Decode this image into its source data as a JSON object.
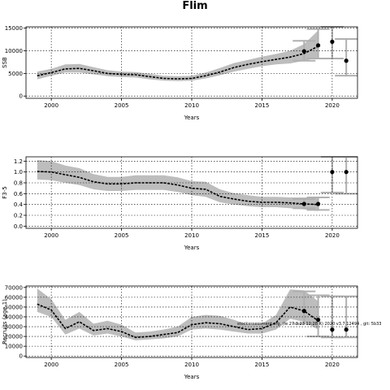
{
  "page": {
    "title": "Flim"
  },
  "annotation": "stockassessment.org, (le 27.3.23 12:28 R) 2020 v3.7.12494 , git: 5b33",
  "chart_data": [
    {
      "type": "line",
      "panel": "ssb",
      "title": "",
      "xlabel": "Years",
      "ylabel": "SSB",
      "xlim": [
        1998.2,
        2021.8
      ],
      "ylim": [
        -500,
        15300
      ],
      "xticks": [
        2000,
        2005,
        2010,
        2015,
        2020
      ],
      "yticks": [
        0,
        5000,
        10000,
        15000
      ],
      "ytick_labels": [
        "0",
        "5000",
        "10000",
        "15000"
      ],
      "grid": true,
      "x": [
        1999,
        2000,
        2001,
        2002,
        2003,
        2004,
        2005,
        2006,
        2007,
        2008,
        2009,
        2010,
        2011,
        2012,
        2013,
        2014,
        2015,
        2016,
        2017,
        2018,
        2019
      ],
      "y": [
        4500,
        5200,
        6000,
        6100,
        5600,
        5000,
        4800,
        4700,
        4300,
        3900,
        3800,
        3900,
        4500,
        5300,
        6300,
        7000,
        7600,
        8100,
        8600,
        9400,
        11000
      ],
      "lower": [
        3700,
        4500,
        5200,
        5200,
        4800,
        4400,
        4200,
        4100,
        3700,
        3400,
        3300,
        3400,
        3900,
        4600,
        5400,
        6000,
        6600,
        7000,
        7200,
        7800,
        8500
      ],
      "upper": [
        5400,
        6000,
        7000,
        7100,
        6400,
        5700,
        5400,
        5300,
        4900,
        4500,
        4400,
        4500,
        5200,
        6200,
        7300,
        8000,
        8700,
        9300,
        10000,
        11500,
        14500
      ],
      "points": [
        {
          "x": 2018,
          "y": 9900,
          "lower": 7800,
          "upper": 12200
        },
        {
          "x": 2019,
          "y": 11200,
          "lower": 8300,
          "upper": 14800
        },
        {
          "x": 2020,
          "y": 12000,
          "lower": 8300,
          "upper": 15300
        },
        {
          "x": 2021,
          "y": 7800,
          "lower": 4500,
          "upper": 12600
        }
      ]
    },
    {
      "type": "line",
      "panel": "f",
      "title": "",
      "xlabel": "Years",
      "ylabel": "F3-5",
      "xlim": [
        1998.2,
        2021.8
      ],
      "ylim": [
        -0.04,
        1.28
      ],
      "xticks": [
        2000,
        2005,
        2010,
        2015,
        2020
      ],
      "yticks": [
        0,
        0.2,
        0.4,
        0.6,
        0.8,
        1.0,
        1.2
      ],
      "ytick_labels": [
        "0.0",
        "0.2",
        "0.4",
        "0.6",
        "0.8",
        "1.0",
        "1.2"
      ],
      "grid": true,
      "x": [
        1999,
        2000,
        2001,
        2002,
        2003,
        2004,
        2005,
        2006,
        2007,
        2008,
        2009,
        2010,
        2011,
        2012,
        2013,
        2014,
        2015,
        2016,
        2017,
        2018,
        2019
      ],
      "y": [
        1.01,
        1.0,
        0.95,
        0.9,
        0.82,
        0.78,
        0.78,
        0.8,
        0.8,
        0.8,
        0.76,
        0.7,
        0.68,
        0.55,
        0.5,
        0.46,
        0.44,
        0.44,
        0.43,
        0.41,
        0.4
      ],
      "lower": [
        0.86,
        0.85,
        0.8,
        0.76,
        0.68,
        0.65,
        0.65,
        0.67,
        0.67,
        0.67,
        0.63,
        0.57,
        0.54,
        0.44,
        0.4,
        0.37,
        0.35,
        0.35,
        0.33,
        0.31,
        0.28
      ],
      "upper": [
        1.22,
        1.2,
        1.12,
        1.07,
        0.96,
        0.91,
        0.91,
        0.94,
        0.94,
        0.94,
        0.9,
        0.83,
        0.82,
        0.68,
        0.61,
        0.57,
        0.54,
        0.54,
        0.53,
        0.53,
        0.53
      ],
      "points": [
        {
          "x": 2018,
          "y": 0.41,
          "lower": 0.33,
          "upper": 0.5
        },
        {
          "x": 2019,
          "y": 0.41,
          "lower": 0.3,
          "upper": 0.53
        },
        {
          "x": 2020,
          "y": 1.0,
          "lower": 0.62,
          "upper": 1.28
        },
        {
          "x": 2021,
          "y": 1.0,
          "lower": 0.6,
          "upper": 1.28
        }
      ]
    },
    {
      "type": "line",
      "panel": "recruits",
      "title": "",
      "xlabel": "Years",
      "ylabel": "Recruits (age 1)",
      "xlim": [
        1998.2,
        2021.8
      ],
      "ylim": [
        -1500,
        71500
      ],
      "xticks": [
        2000,
        2005,
        2010,
        2015,
        2020
      ],
      "yticks": [
        0,
        10000,
        20000,
        30000,
        40000,
        50000,
        60000,
        70000
      ],
      "ytick_labels": [
        "0",
        "10000",
        "20000",
        "30000",
        "40000",
        "50000",
        "60000",
        "70000"
      ],
      "grid": true,
      "x": [
        1999,
        2000,
        2001,
        2002,
        2003,
        2004,
        2005,
        2006,
        2007,
        2008,
        2009,
        2010,
        2011,
        2012,
        2013,
        2014,
        2015,
        2016,
        2017,
        2018,
        2019
      ],
      "y": [
        53000,
        47000,
        28000,
        35000,
        26000,
        28000,
        25000,
        19000,
        20000,
        22000,
        24000,
        32000,
        34000,
        33000,
        30000,
        27000,
        28000,
        34000,
        50000,
        46000,
        36000
      ],
      "lower": [
        45000,
        40000,
        22000,
        28000,
        21000,
        23000,
        20000,
        16000,
        17000,
        18000,
        20000,
        27000,
        28000,
        27000,
        25000,
        23000,
        23000,
        27000,
        38000,
        35000,
        27000
      ],
      "upper": [
        69000,
        58000,
        37000,
        45000,
        33000,
        36000,
        32000,
        24000,
        25000,
        27000,
        30000,
        40000,
        42000,
        41000,
        37000,
        32000,
        33000,
        42000,
        68000,
        67000,
        56000
      ],
      "points": [
        {
          "x": 2018,
          "y": 46000,
          "lower": 33000,
          "upper": 66000
        },
        {
          "x": 2019,
          "y": 37000,
          "lower": 20000,
          "upper": 62000
        },
        {
          "x": 2020,
          "y": 27000,
          "lower": 19000,
          "upper": 61000
        },
        {
          "x": 2021,
          "y": 27000,
          "lower": 19000,
          "upper": 61000
        }
      ]
    }
  ]
}
